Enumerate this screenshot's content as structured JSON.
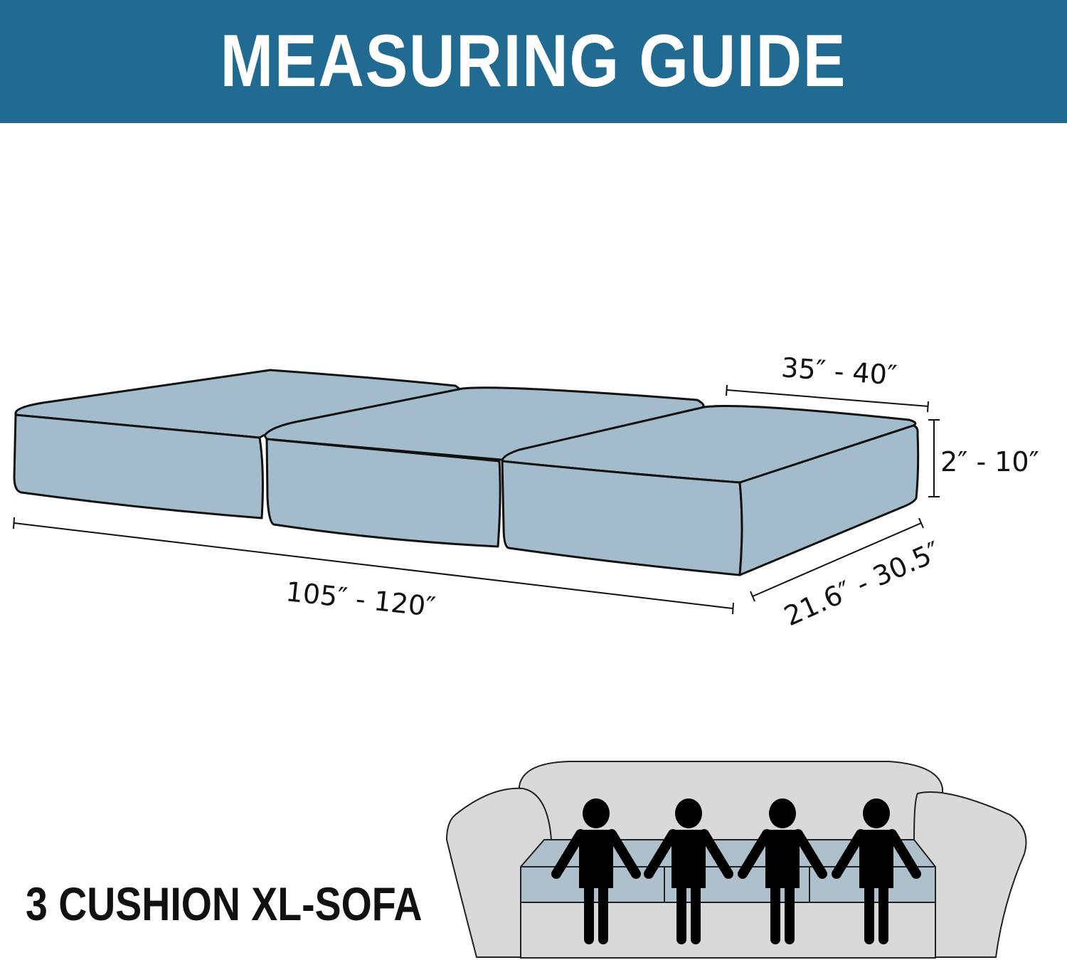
{
  "header": {
    "title": "MEASURING GUIDE"
  },
  "dimensions": {
    "length": "105″ - 120″",
    "width": "35″ - 40″",
    "height": "2″ - 10″",
    "depth": "21.6″ - 30.5″"
  },
  "sofa": {
    "label": "3 CUSHION XL-SOFA",
    "people_count": 4
  },
  "colors": {
    "header": "#216a92",
    "cushion": "#a3bccc",
    "sofa": "#d9d9d9"
  }
}
